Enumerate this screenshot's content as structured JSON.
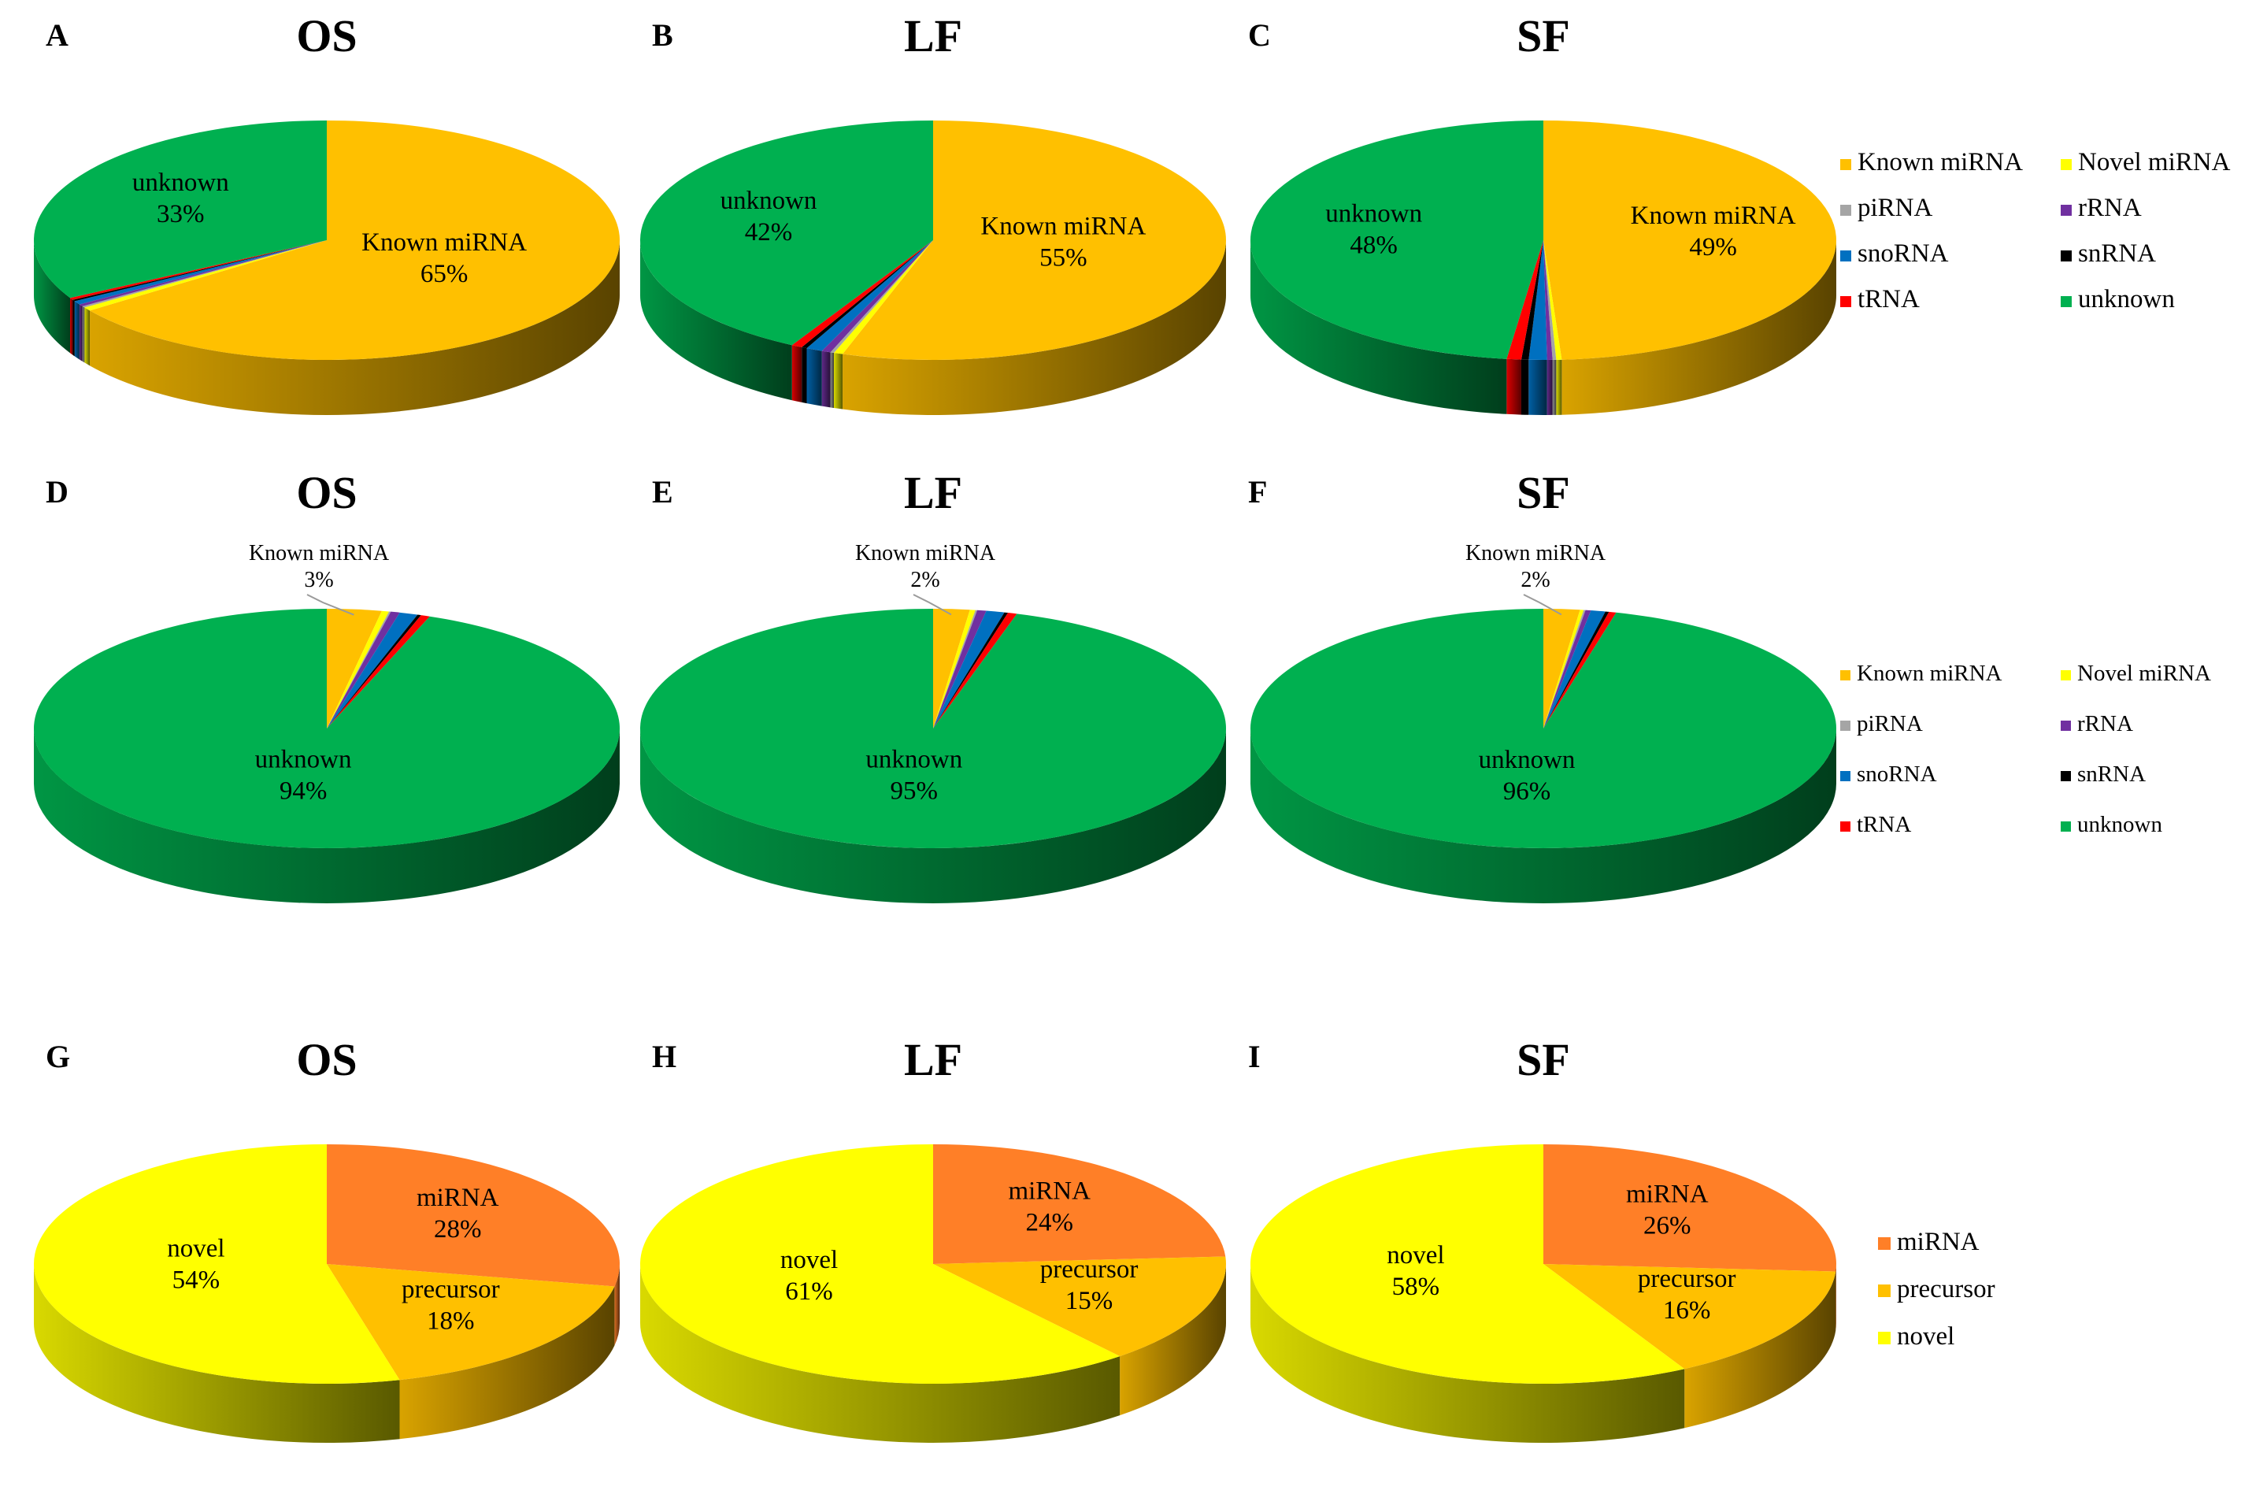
{
  "colors": {
    "Known miRNA": "#FFC000",
    "Novel miRNA": "#FFFF00",
    "piRNA": "#A5A5A5",
    "rRNA": "#7030A0",
    "snoRNA": "#0070C0",
    "snRNA": "#000000",
    "tRNA": "#FF0000",
    "unknown": "#00B050",
    "miRNA": "#FF7F27",
    "precursor": "#FFC000",
    "novel": "#FFFF00"
  },
  "legends": {
    "row1": [
      "Known miRNA",
      "Novel miRNA",
      "piRNA",
      "rRNA",
      "snoRNA",
      "snRNA",
      "tRNA",
      "unknown"
    ],
    "row2": [
      "Known miRNA",
      "Novel miRNA",
      "piRNA",
      "rRNA",
      "snoRNA",
      "snRNA",
      "tRNA",
      "unknown"
    ],
    "row3": [
      "miRNA",
      "precursor",
      "novel"
    ]
  },
  "chart_data": [
    {
      "panel": "A",
      "title": "OS",
      "type": "pie",
      "slices": [
        {
          "name": "Known miRNA",
          "value": 65,
          "label": "Known miRNA",
          "pct": "65%"
        },
        {
          "name": "Novel miRNA",
          "value": 0.5
        },
        {
          "name": "piRNA",
          "value": 0.2
        },
        {
          "name": "rRNA",
          "value": 0.3
        },
        {
          "name": "snoRNA",
          "value": 0.5
        },
        {
          "name": "snRNA",
          "value": 0.2
        },
        {
          "name": "tRNA",
          "value": 0.3
        },
        {
          "name": "unknown",
          "value": 33,
          "label": "unknown",
          "pct": "33%"
        }
      ]
    },
    {
      "panel": "B",
      "title": "LF",
      "type": "pie",
      "slices": [
        {
          "name": "Known miRNA",
          "value": 55,
          "label": "Known miRNA",
          "pct": "55%"
        },
        {
          "name": "Novel miRNA",
          "value": 0.5
        },
        {
          "name": "piRNA",
          "value": 0.2
        },
        {
          "name": "rRNA",
          "value": 0.5
        },
        {
          "name": "snoRNA",
          "value": 0.9
        },
        {
          "name": "snRNA",
          "value": 0.3
        },
        {
          "name": "tRNA",
          "value": 0.6
        },
        {
          "name": "unknown",
          "value": 42,
          "label": "unknown",
          "pct": "42%"
        }
      ]
    },
    {
      "panel": "C",
      "title": "SF",
      "type": "pie",
      "slices": [
        {
          "name": "Known miRNA",
          "value": 49,
          "label": "Known miRNA",
          "pct": "49%"
        },
        {
          "name": "Novel miRNA",
          "value": 0.3
        },
        {
          "name": "piRNA",
          "value": 0.2
        },
        {
          "name": "rRNA",
          "value": 0.3
        },
        {
          "name": "snoRNA",
          "value": 1.0
        },
        {
          "name": "snRNA",
          "value": 0.4
        },
        {
          "name": "tRNA",
          "value": 0.8
        },
        {
          "name": "unknown",
          "value": 48,
          "label": "unknown",
          "pct": "48%"
        }
      ]
    },
    {
      "panel": "D",
      "title": "OS",
      "type": "pie",
      "slices": [
        {
          "name": "Known miRNA",
          "value": 3,
          "label": "Known miRNA",
          "pct": "3%",
          "callout": true
        },
        {
          "name": "Novel miRNA",
          "value": 0.4
        },
        {
          "name": "piRNA",
          "value": 0.1
        },
        {
          "name": "rRNA",
          "value": 0.5
        },
        {
          "name": "snoRNA",
          "value": 1.0
        },
        {
          "name": "snRNA",
          "value": 0.2
        },
        {
          "name": "tRNA",
          "value": 0.5
        },
        {
          "name": "unknown",
          "value": 94,
          "label": "unknown",
          "pct": "94%"
        }
      ]
    },
    {
      "panel": "E",
      "title": "LF",
      "type": "pie",
      "slices": [
        {
          "name": "Known miRNA",
          "value": 2,
          "label": "Known miRNA",
          "pct": "2%",
          "callout": true
        },
        {
          "name": "Novel miRNA",
          "value": 0.3
        },
        {
          "name": "piRNA",
          "value": 0.1
        },
        {
          "name": "rRNA",
          "value": 0.5
        },
        {
          "name": "snoRNA",
          "value": 1.0
        },
        {
          "name": "snRNA",
          "value": 0.2
        },
        {
          "name": "tRNA",
          "value": 0.5
        },
        {
          "name": "unknown",
          "value": 95,
          "label": "unknown",
          "pct": "95%"
        }
      ]
    },
    {
      "panel": "F",
      "title": "SF",
      "type": "pie",
      "slices": [
        {
          "name": "Known miRNA",
          "value": 2,
          "label": "Known miRNA",
          "pct": "2%",
          "callout": true
        },
        {
          "name": "Novel miRNA",
          "value": 0.2
        },
        {
          "name": "piRNA",
          "value": 0.1
        },
        {
          "name": "rRNA",
          "value": 0.3
        },
        {
          "name": "snoRNA",
          "value": 0.8
        },
        {
          "name": "snRNA",
          "value": 0.2
        },
        {
          "name": "tRNA",
          "value": 0.4
        },
        {
          "name": "unknown",
          "value": 96,
          "label": "unknown",
          "pct": "96%"
        }
      ]
    },
    {
      "panel": "G",
      "title": "OS",
      "type": "pie",
      "slices": [
        {
          "name": "miRNA",
          "value": 28,
          "label": "miRNA",
          "pct": "28%"
        },
        {
          "name": "precursor",
          "value": 18,
          "label": "precursor",
          "pct": "18%"
        },
        {
          "name": "novel",
          "value": 54,
          "label": "novel",
          "pct": "54%"
        }
      ]
    },
    {
      "panel": "H",
      "title": "LF",
      "type": "pie",
      "slices": [
        {
          "name": "miRNA",
          "value": 24,
          "label": "miRNA",
          "pct": "24%"
        },
        {
          "name": "precursor",
          "value": 15,
          "label": "precursor",
          "pct": "15%"
        },
        {
          "name": "novel",
          "value": 61,
          "label": "novel",
          "pct": "61%"
        }
      ]
    },
    {
      "panel": "I",
      "title": "SF",
      "type": "pie",
      "slices": [
        {
          "name": "miRNA",
          "value": 26,
          "label": "miRNA",
          "pct": "26%"
        },
        {
          "name": "precursor",
          "value": 16,
          "label": "precursor",
          "pct": "16%"
        },
        {
          "name": "novel",
          "value": 58,
          "label": "novel",
          "pct": "58%"
        }
      ]
    }
  ]
}
